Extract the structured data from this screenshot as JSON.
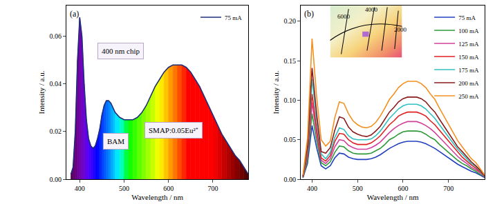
{
  "chart_data": [
    {
      "type": "area",
      "title": "(a)",
      "x_label": "Wavelength / nm",
      "y_label": "Intensity / a.u.",
      "x": [
        380,
        385,
        390,
        395,
        400,
        405,
        410,
        415,
        420,
        425,
        430,
        435,
        440,
        445,
        450,
        455,
        460,
        465,
        470,
        475,
        480,
        490,
        500,
        510,
        520,
        530,
        540,
        550,
        560,
        570,
        580,
        590,
        600,
        610,
        620,
        630,
        640,
        650,
        660,
        670,
        680,
        690,
        700,
        710,
        720,
        730,
        740,
        750,
        760,
        770,
        780
      ],
      "series": [
        {
          "name": "75 mA",
          "color": "#1f2d7a",
          "values": [
            0.002,
            0.005,
            0.02,
            0.05,
            0.068,
            0.06,
            0.04,
            0.025,
            0.017,
            0.014,
            0.013,
            0.014,
            0.017,
            0.021,
            0.027,
            0.031,
            0.033,
            0.033,
            0.032,
            0.03,
            0.028,
            0.026,
            0.025,
            0.025,
            0.025,
            0.026,
            0.028,
            0.031,
            0.035,
            0.039,
            0.042,
            0.045,
            0.047,
            0.048,
            0.048,
            0.048,
            0.047,
            0.045,
            0.042,
            0.039,
            0.035,
            0.031,
            0.027,
            0.023,
            0.019,
            0.016,
            0.013,
            0.01,
            0.008,
            0.005,
            0.002
          ]
        }
      ],
      "xlim": [
        370,
        780
      ],
      "xticks": [
        400,
        500,
        600,
        700
      ],
      "ylim": [
        0,
        0.073
      ],
      "yticks": [
        {
          "value": 0,
          "label": "0.00"
        },
        0.02,
        0.04,
        0.06
      ],
      "grid": false,
      "legend": "upper right",
      "annotations": [
        "400 nm chip",
        "BAM",
        "SMAP:0.05Eu²⁺"
      ]
    },
    {
      "type": "line",
      "title": "(b)",
      "x_label": "Wavelength / nm",
      "y_label": "Intensity / a.u.",
      "x": [
        380,
        390,
        400,
        410,
        420,
        430,
        440,
        450,
        460,
        470,
        480,
        490,
        500,
        510,
        520,
        530,
        540,
        550,
        560,
        570,
        580,
        590,
        600,
        610,
        620,
        630,
        640,
        650,
        660,
        670,
        680,
        690,
        700,
        710,
        720,
        730,
        740,
        750,
        760,
        770,
        780
      ],
      "series": [
        {
          "name": "75 mA",
          "color": "#1f3fbf",
          "values": [
            0.002,
            0.02,
            0.068,
            0.04,
            0.017,
            0.013,
            0.017,
            0.027,
            0.033,
            0.032,
            0.028,
            0.026,
            0.025,
            0.025,
            0.025,
            0.026,
            0.028,
            0.031,
            0.035,
            0.039,
            0.042,
            0.045,
            0.047,
            0.048,
            0.048,
            0.048,
            0.047,
            0.045,
            0.042,
            0.039,
            0.035,
            0.031,
            0.027,
            0.023,
            0.019,
            0.016,
            0.013,
            0.01,
            0.008,
            0.005,
            0.002
          ]
        },
        {
          "name": "100 mA",
          "color": "#2e9a3a",
          "values": [
            0.002,
            0.024,
            0.083,
            0.049,
            0.021,
            0.017,
            0.022,
            0.034,
            0.042,
            0.041,
            0.036,
            0.033,
            0.032,
            0.032,
            0.032,
            0.033,
            0.036,
            0.039,
            0.044,
            0.05,
            0.053,
            0.057,
            0.06,
            0.061,
            0.061,
            0.061,
            0.06,
            0.057,
            0.053,
            0.05,
            0.044,
            0.039,
            0.034,
            0.029,
            0.024,
            0.02,
            0.017,
            0.013,
            0.01,
            0.006,
            0.003
          ]
        },
        {
          "name": "125 mA",
          "color": "#d0409a",
          "values": [
            0.003,
            0.029,
            0.097,
            0.057,
            0.024,
            0.02,
            0.026,
            0.041,
            0.05,
            0.049,
            0.043,
            0.04,
            0.038,
            0.038,
            0.038,
            0.04,
            0.043,
            0.047,
            0.053,
            0.059,
            0.064,
            0.068,
            0.071,
            0.073,
            0.073,
            0.073,
            0.071,
            0.068,
            0.064,
            0.059,
            0.053,
            0.047,
            0.041,
            0.035,
            0.029,
            0.024,
            0.02,
            0.015,
            0.012,
            0.008,
            0.003
          ]
        },
        {
          "name": "150 mA",
          "color": "#e02020",
          "values": [
            0.003,
            0.032,
            0.108,
            0.064,
            0.027,
            0.023,
            0.03,
            0.048,
            0.058,
            0.057,
            0.05,
            0.046,
            0.044,
            0.044,
            0.044,
            0.046,
            0.05,
            0.055,
            0.062,
            0.069,
            0.074,
            0.08,
            0.083,
            0.085,
            0.085,
            0.085,
            0.083,
            0.08,
            0.074,
            0.069,
            0.062,
            0.055,
            0.048,
            0.041,
            0.034,
            0.028,
            0.023,
            0.018,
            0.014,
            0.009,
            0.004
          ]
        },
        {
          "name": "175 mA",
          "color": "#30c0c0",
          "values": [
            0.004,
            0.037,
            0.127,
            0.075,
            0.032,
            0.026,
            0.034,
            0.053,
            0.065,
            0.063,
            0.055,
            0.051,
            0.05,
            0.05,
            0.05,
            0.051,
            0.055,
            0.061,
            0.069,
            0.077,
            0.083,
            0.089,
            0.093,
            0.095,
            0.095,
            0.095,
            0.093,
            0.089,
            0.083,
            0.077,
            0.069,
            0.061,
            0.053,
            0.046,
            0.038,
            0.032,
            0.026,
            0.02,
            0.016,
            0.01,
            0.004
          ]
        },
        {
          "name": "200 mA",
          "color": "#8b1a1a",
          "values": [
            0.004,
            0.041,
            0.141,
            0.083,
            0.035,
            0.033,
            0.04,
            0.062,
            0.079,
            0.077,
            0.066,
            0.06,
            0.057,
            0.055,
            0.054,
            0.056,
            0.061,
            0.067,
            0.076,
            0.085,
            0.091,
            0.098,
            0.102,
            0.104,
            0.104,
            0.104,
            0.102,
            0.098,
            0.091,
            0.085,
            0.076,
            0.067,
            0.059,
            0.05,
            0.041,
            0.035,
            0.028,
            0.022,
            0.017,
            0.011,
            0.004
          ]
        },
        {
          "name": "250 mA",
          "color": "#f39020",
          "values": [
            0.005,
            0.052,
            0.178,
            0.105,
            0.05,
            0.042,
            0.048,
            0.078,
            0.098,
            0.096,
            0.083,
            0.074,
            0.069,
            0.066,
            0.065,
            0.067,
            0.072,
            0.08,
            0.09,
            0.101,
            0.108,
            0.116,
            0.121,
            0.124,
            0.124,
            0.124,
            0.121,
            0.116,
            0.108,
            0.101,
            0.09,
            0.08,
            0.07,
            0.059,
            0.049,
            0.041,
            0.034,
            0.026,
            0.021,
            0.013,
            0.005
          ]
        }
      ],
      "xlim": [
        375,
        780
      ],
      "xticks": [
        400,
        500,
        600,
        700
      ],
      "ylim": [
        0,
        0.22
      ],
      "yticks": [
        {
          "value": 0,
          "label": "0.00"
        },
        0.05,
        {
          "value": 0.1,
          "label": "0.10"
        },
        0.15,
        {
          "value": 0.2,
          "label": "0.20"
        }
      ],
      "grid": false,
      "legend": "upper right",
      "annotations": [
        "6000",
        "4000",
        "2000"
      ]
    }
  ]
}
